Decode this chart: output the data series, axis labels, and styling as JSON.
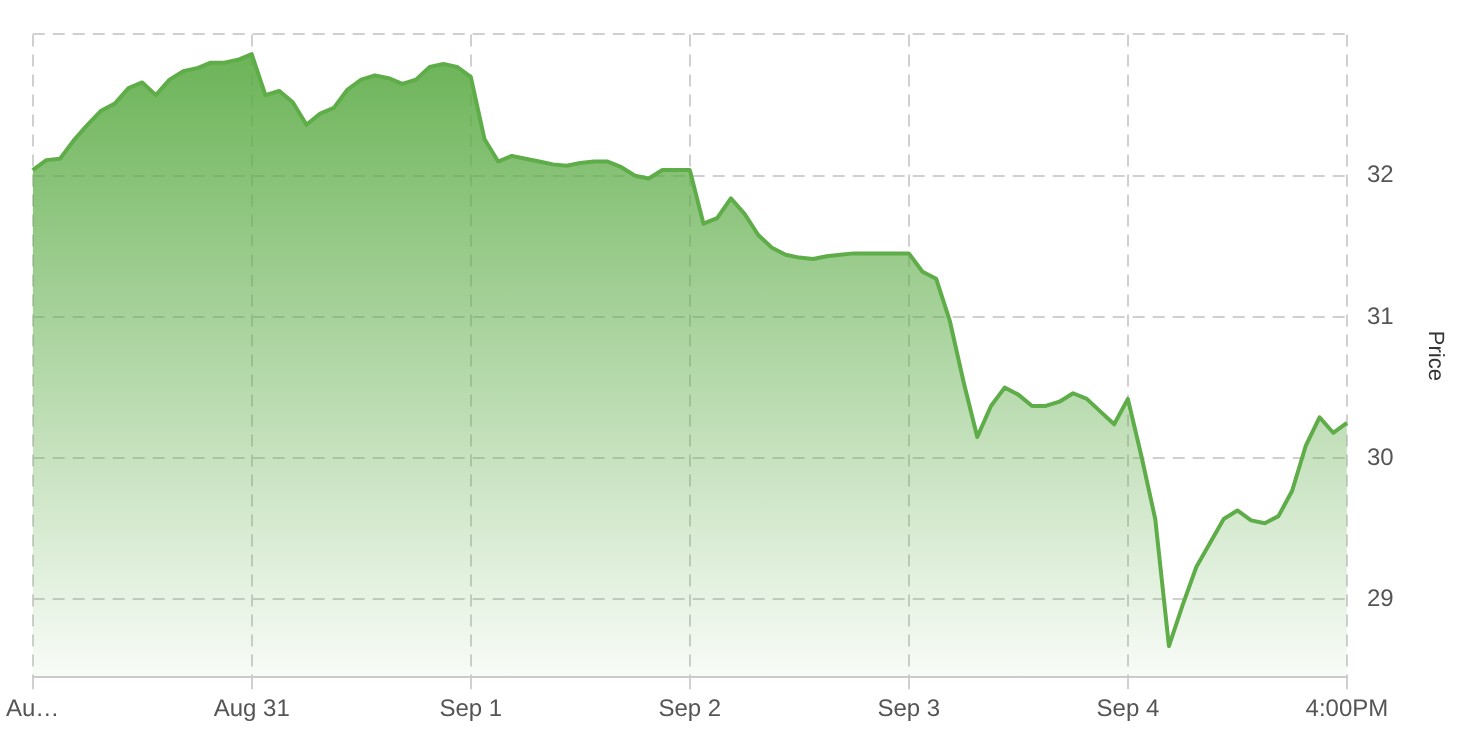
{
  "chart_data": {
    "type": "area",
    "ylabel": "Price",
    "categories": [
      "Au…",
      null,
      null,
      null,
      null,
      null,
      null,
      null,
      null,
      null,
      null,
      null,
      null,
      null,
      null,
      null,
      "Aug 31",
      null,
      null,
      null,
      null,
      null,
      null,
      null,
      null,
      null,
      null,
      null,
      null,
      null,
      null,
      null,
      "Sep 1",
      null,
      null,
      null,
      null,
      null,
      null,
      null,
      null,
      null,
      null,
      null,
      null,
      null,
      null,
      null,
      "Sep 2",
      null,
      null,
      null,
      null,
      null,
      null,
      null,
      null,
      null,
      null,
      null,
      null,
      null,
      null,
      null,
      "Sep 3",
      null,
      null,
      null,
      null,
      null,
      null,
      null,
      null,
      null,
      null,
      null,
      null,
      null,
      null,
      null,
      "Sep 4",
      null,
      null,
      null,
      null,
      null,
      null,
      null,
      null,
      null,
      null,
      null,
      null,
      null,
      null,
      null,
      "4:00PM"
    ],
    "series": [
      {
        "color": "#5fad49",
        "values": [
          32.04,
          32.11,
          32.12,
          32.25,
          32.36,
          32.46,
          32.51,
          32.62,
          32.66,
          32.57,
          32.68,
          32.74,
          32.76,
          32.8,
          32.8,
          32.82,
          32.86,
          32.57,
          32.6,
          32.52,
          32.36,
          32.44,
          32.48,
          32.61,
          32.68,
          32.71,
          32.69,
          32.65,
          32.68,
          32.77,
          32.79,
          32.77,
          32.7,
          32.26,
          32.1,
          32.14,
          32.12,
          32.1,
          32.08,
          32.07,
          32.09,
          32.1,
          32.1,
          32.06,
          32,
          31.98,
          32.04,
          32.04,
          32.04,
          31.66,
          31.7,
          31.84,
          31.73,
          31.58,
          31.49,
          31.44,
          31.42,
          31.41,
          31.43,
          31.44,
          31.45,
          31.45,
          31.45,
          31.45,
          31.45,
          31.32,
          31.27,
          30.97,
          30.54,
          30.15,
          30.37,
          30.5,
          30.45,
          30.37,
          30.37,
          30.4,
          30.46,
          30.42,
          30.33,
          30.24,
          30.42,
          30.01,
          29.57,
          28.67,
          28.96,
          29.23,
          29.4,
          29.57,
          29.63,
          29.56,
          29.54,
          29.59,
          29.77,
          30.09,
          30.29,
          30.18,
          30.25
        ]
      }
    ],
    "ylim": [
      28.45,
      33
    ],
    "yticks": [
      29,
      30,
      31,
      32,
      {
        "value": 33,
        "label": null
      }
    ],
    "grid": true,
    "legend": false,
    "marker": "none",
    "line_style": "solid"
  }
}
